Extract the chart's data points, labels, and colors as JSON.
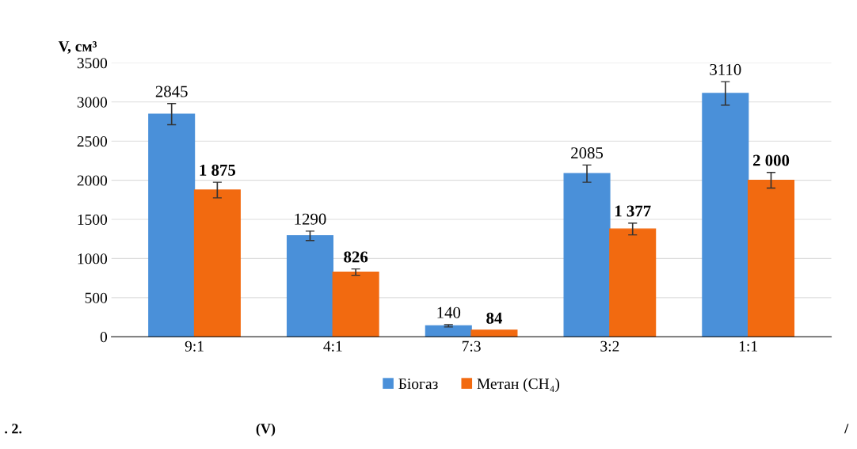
{
  "chart_data": {
    "type": "bar",
    "ylabel": "V, см³",
    "categories": [
      "9:1",
      "4:1",
      "7:3",
      "3:2",
      "1:1"
    ],
    "series": [
      {
        "name": "Біогаз",
        "color": "#4a90d9",
        "values": [
          2845,
          1290,
          140,
          2085,
          3110
        ],
        "errors": [
          135,
          60,
          15,
          110,
          150
        ],
        "value_labels": [
          "2845",
          "1290",
          "140",
          "2085",
          "3110"
        ]
      },
      {
        "name": "Метан (CH₄)",
        "color": "#f26a10",
        "values": [
          1875,
          826,
          84,
          1377,
          2000
        ],
        "errors": [
          100,
          40,
          null,
          75,
          100
        ],
        "value_labels": [
          "1 875",
          "826",
          "84",
          "1 377",
          "2 000"
        ]
      }
    ],
    "ylim": [
      0,
      3500
    ],
    "yticks": [
      0,
      500,
      1000,
      1500,
      2000,
      2500,
      3000,
      3500
    ],
    "grid": "y",
    "legend": "bottom",
    "annotations": [
      ". 2.",
      "(V)",
      "/"
    ]
  }
}
